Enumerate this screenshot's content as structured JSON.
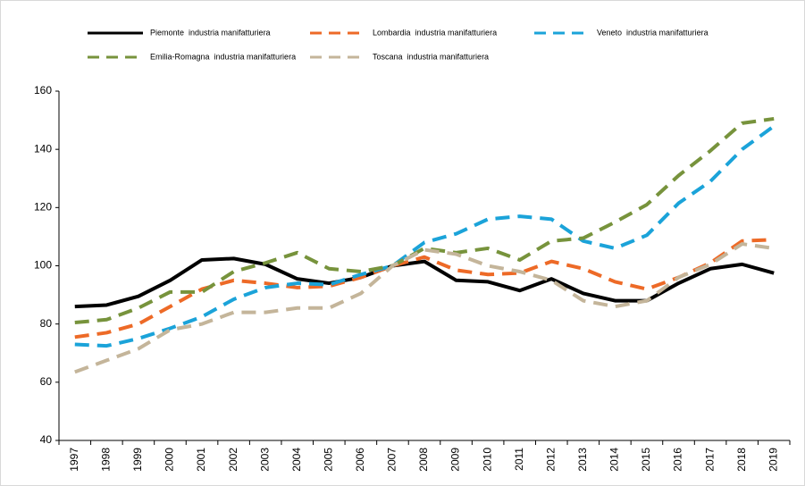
{
  "chart_data": {
    "type": "line",
    "categories": [
      "1997",
      "1998",
      "1999",
      "2000",
      "2001",
      "2002",
      "2003",
      "2004",
      "2005",
      "2006",
      "2007",
      "2008",
      "2009",
      "2010",
      "2011",
      "2012",
      "2013",
      "2014",
      "2015",
      "2016",
      "2017",
      "2018",
      "2019"
    ],
    "series": [
      {
        "name": "Piemonte  industria manifatturiera",
        "color": "#000000",
        "dashed": false,
        "values": [
          86,
          86.5,
          89.5,
          95,
          102,
          102.5,
          100.5,
          95.5,
          94,
          96,
          100,
          101.5,
          95,
          94.5,
          91.5,
          95.5,
          90.5,
          88,
          88,
          94,
          99,
          100.5,
          97.5
        ]
      },
      {
        "name": "Lombardia  industria manifatturiera",
        "color": "#ed6a27",
        "dashed": true,
        "values": [
          75.5,
          77,
          80,
          86,
          92,
          95,
          94,
          92.5,
          93,
          96,
          100,
          103,
          98.5,
          97,
          97.5,
          101.5,
          99,
          94.5,
          92,
          96,
          101,
          108.5,
          109
        ]
      },
      {
        "name": "Veneto  industria manifatturiera",
        "color": "#1ba3d9",
        "dashed": true,
        "values": [
          73,
          72.5,
          75,
          78.5,
          82.5,
          88.5,
          92.5,
          94,
          93.5,
          97,
          100,
          108,
          111,
          116,
          117,
          116,
          108.5,
          106,
          110.5,
          121.5,
          129,
          140,
          148
        ]
      },
      {
        "name": "Emilia-Romagna  industria manifatturiera",
        "color": "#77933c",
        "dashed": true,
        "values": [
          80.5,
          81.5,
          85.5,
          91,
          91,
          98,
          101,
          104.5,
          99,
          98,
          100,
          106,
          104.5,
          106,
          102,
          108.5,
          109.5,
          115,
          121,
          131,
          139.5,
          149,
          150.5
        ]
      },
      {
        "name": "Toscana  industria manifatturiera",
        "color": "#c4b59a",
        "dashed": true,
        "values": [
          63.5,
          67.5,
          71.5,
          78,
          80,
          84,
          84,
          85.5,
          85.5,
          90.5,
          100,
          105.5,
          104,
          100,
          98,
          95,
          88,
          86,
          88,
          96,
          100.5,
          107.5,
          106
        ]
      }
    ],
    "ylim": [
      40,
      160
    ],
    "yticks": [
      40,
      60,
      80,
      100,
      120,
      140,
      160
    ],
    "grid": false,
    "legend": "top"
  }
}
